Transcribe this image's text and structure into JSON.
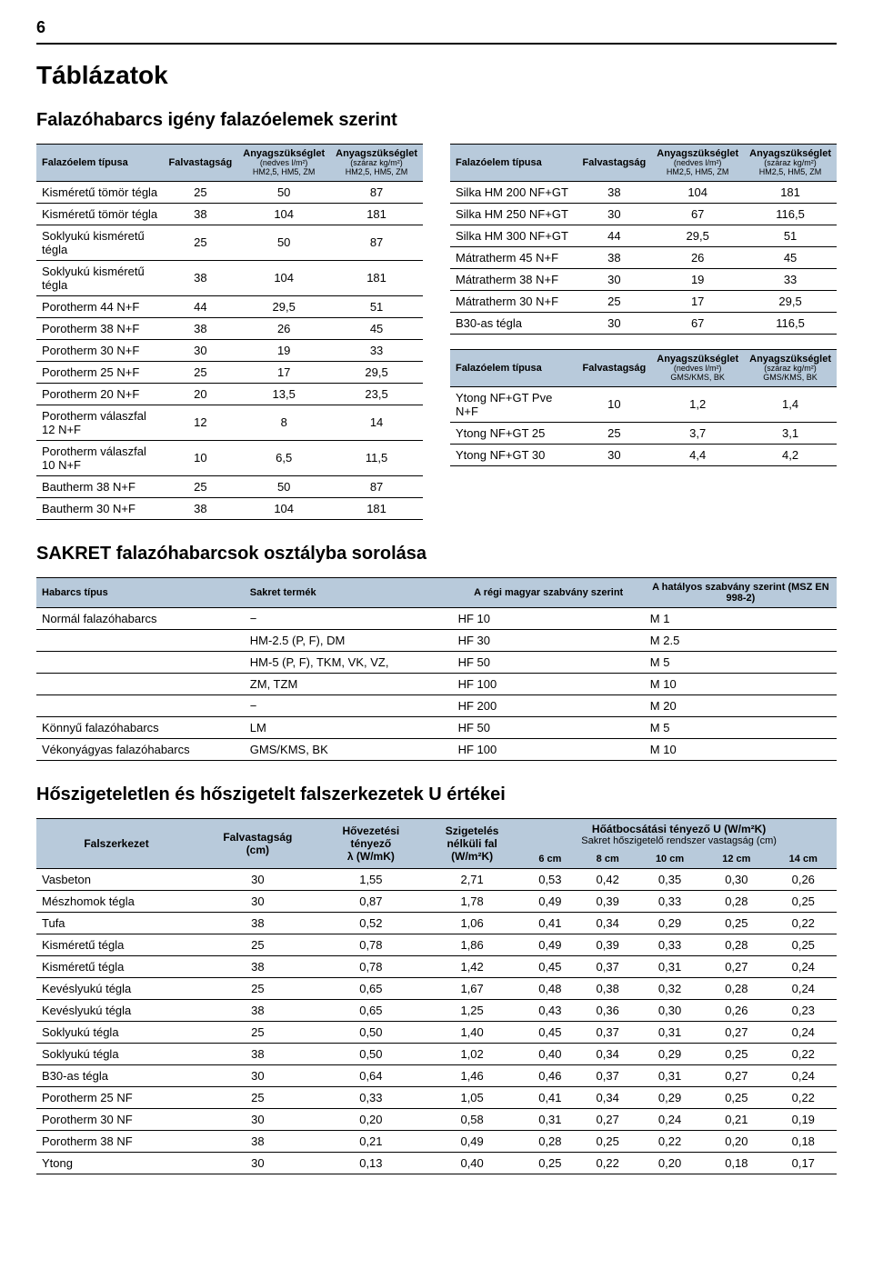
{
  "page_number": "6",
  "section_title": "Táblázatok",
  "subtitle_1": "Falazóhabarcs igény falazóelemek szerint",
  "header_common": {
    "c1": "Falazóelem típusa",
    "c2": "Falvastagság",
    "c3_line1": "Anyagszükséglet",
    "c3_line2": "(nedves l/m²)",
    "c3_line3": "HM2,5, HM5, ZM",
    "c4_line1": "Anyagszükséglet",
    "c4_line2": "(száraz kg/m²)",
    "c4_line3": "HM2,5, HM5, ZM",
    "c3b_line2": "(nedves l/m²)",
    "c3b_line3": "GMS/KMS, BK",
    "c4b_line2": "(száraz kg/m²)",
    "c4b_line3": "GMS/KMS, BK"
  },
  "table_left": [
    [
      "Kisméretű tömör tégla",
      "25",
      "50",
      "87"
    ],
    [
      "Kisméretű tömör tégla",
      "38",
      "104",
      "181"
    ],
    [
      "Soklyukú kisméretű tégla",
      "25",
      "50",
      "87"
    ],
    [
      "Soklyukú kisméretű tégla",
      "38",
      "104",
      "181"
    ],
    [
      "Porotherm 44 N+F",
      "44",
      "29,5",
      "51"
    ],
    [
      "Porotherm 38 N+F",
      "38",
      "26",
      "45"
    ],
    [
      "Porotherm 30 N+F",
      "30",
      "19",
      "33"
    ],
    [
      "Porotherm 25 N+F",
      "25",
      "17",
      "29,5"
    ],
    [
      "Porotherm 20 N+F",
      "20",
      "13,5",
      "23,5"
    ],
    [
      "Porotherm válaszfal 12 N+F",
      "12",
      "8",
      "14"
    ],
    [
      "Porotherm válaszfal 10 N+F",
      "10",
      "6,5",
      "11,5"
    ],
    [
      "Bautherm 38 N+F",
      "25",
      "50",
      "87"
    ],
    [
      "Bautherm 30 N+F",
      "38",
      "104",
      "181"
    ]
  ],
  "table_right_top": [
    [
      "Silka HM 200 NF+GT",
      "38",
      "104",
      "181"
    ],
    [
      "Silka HM 250 NF+GT",
      "30",
      "67",
      "116,5"
    ],
    [
      "Silka HM 300 NF+GT",
      "44",
      "29,5",
      "51"
    ],
    [
      "Mátratherm 45 N+F",
      "38",
      "26",
      "45"
    ],
    [
      "Mátratherm 38 N+F",
      "30",
      "19",
      "33"
    ],
    [
      "Mátratherm 30 N+F",
      "25",
      "17",
      "29,5"
    ],
    [
      "B30-as tégla",
      "30",
      "67",
      "116,5"
    ]
  ],
  "table_right_bottom": [
    [
      "Ytong NF+GT Pve N+F",
      "10",
      "1,2",
      "1,4"
    ],
    [
      "Ytong NF+GT 25",
      "25",
      "3,7",
      "3,1"
    ],
    [
      "Ytong NF+GT 30",
      "30",
      "4,4",
      "4,2"
    ]
  ],
  "subtitle_2": "SAKRET falazóhabarcsok osztályba sorolása",
  "class_header": {
    "c1": "Habarcs típus",
    "c2": "Sakret termék",
    "c3": "A régi magyar szabvány szerint",
    "c4": "A hatályos szabvány szerint (MSZ EN 998-2)"
  },
  "class_rows": [
    [
      "Normál falazóhabarcs",
      "−",
      "HF 10",
      "M 1"
    ],
    [
      "",
      "HM-2.5 (P, F), DM",
      "HF 30",
      "M 2.5"
    ],
    [
      "",
      "HM-5 (P, F), TKM, VK, VZ,",
      "HF 50",
      "M 5"
    ],
    [
      "",
      "ZM, TZM",
      "HF 100",
      "M 10"
    ],
    [
      "",
      "−",
      "HF 200",
      "M 20"
    ],
    [
      "Könnyű falazóhabarcs",
      "LM",
      "HF 50",
      "M 5"
    ],
    [
      "Vékonyágyas falazóhabarcs",
      "GMS/KMS, BK",
      "HF 100",
      "M 10"
    ]
  ],
  "subtitle_3": "Hőszigeteletlen és hőszigetelt falszerkezetek U értékei",
  "u_header": {
    "c1": "Falszerkezet",
    "c2_l1": "Falvastagság",
    "c2_l2": "(cm)",
    "c3_l1": "Hővezetési",
    "c3_l2": "tényező",
    "c3_l3": "λ (W/mK)",
    "c4_l1": "Szigetelés",
    "c4_l2": "nélküli fal",
    "c4_l3": "(W/m²K)",
    "over_l1": "Hőátbocsátási tényező U (W/m²K)",
    "over_l2": "Sakret hőszigetelő rendszer vastagság (cm)",
    "sub": [
      "6 cm",
      "8 cm",
      "10 cm",
      "12 cm",
      "14 cm"
    ]
  },
  "u_rows": [
    [
      "Vasbeton",
      "30",
      "1,55",
      "2,71",
      "0,53",
      "0,42",
      "0,35",
      "0,30",
      "0,26"
    ],
    [
      "Mészhomok tégla",
      "30",
      "0,87",
      "1,78",
      "0,49",
      "0,39",
      "0,33",
      "0,28",
      "0,25"
    ],
    [
      "Tufa",
      "38",
      "0,52",
      "1,06",
      "0,41",
      "0,34",
      "0,29",
      "0,25",
      "0,22"
    ],
    [
      "Kisméretű tégla",
      "25",
      "0,78",
      "1,86",
      "0,49",
      "0,39",
      "0,33",
      "0,28",
      "0,25"
    ],
    [
      "Kisméretű tégla",
      "38",
      "0,78",
      "1,42",
      "0,45",
      "0,37",
      "0,31",
      "0,27",
      "0,24"
    ],
    [
      "Kevéslyukú tégla",
      "25",
      "0,65",
      "1,67",
      "0,48",
      "0,38",
      "0,32",
      "0,28",
      "0,24"
    ],
    [
      "Kevéslyukú tégla",
      "38",
      "0,65",
      "1,25",
      "0,43",
      "0,36",
      "0,30",
      "0,26",
      "0,23"
    ],
    [
      "Soklyukú tégla",
      "25",
      "0,50",
      "1,40",
      "0,45",
      "0,37",
      "0,31",
      "0,27",
      "0,24"
    ],
    [
      "Soklyukú tégla",
      "38",
      "0,50",
      "1,02",
      "0,40",
      "0,34",
      "0,29",
      "0,25",
      "0,22"
    ],
    [
      "B30-as tégla",
      "30",
      "0,64",
      "1,46",
      "0,46",
      "0,37",
      "0,31",
      "0,27",
      "0,24"
    ],
    [
      "Porotherm 25 NF",
      "25",
      "0,33",
      "1,05",
      "0,41",
      "0,34",
      "0,29",
      "0,25",
      "0,22"
    ],
    [
      "Porotherm 30 NF",
      "30",
      "0,20",
      "0,58",
      "0,31",
      "0,27",
      "0,24",
      "0,21",
      "0,19"
    ],
    [
      "Porotherm 38 NF",
      "38",
      "0,21",
      "0,49",
      "0,28",
      "0,25",
      "0,22",
      "0,20",
      "0,18"
    ],
    [
      "Ytong",
      "30",
      "0,13",
      "0,40",
      "0,25",
      "0,22",
      "0,20",
      "0,18",
      "0,17"
    ]
  ]
}
